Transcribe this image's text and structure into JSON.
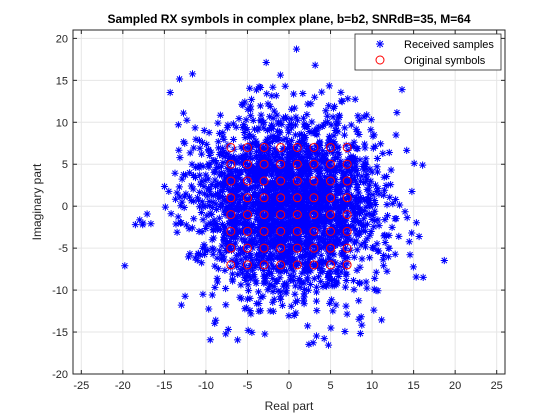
{
  "chart_data": {
    "type": "scatter",
    "title": "Sampled RX symbols in complex plane, b=b2, SNRdB=35, M=64",
    "xlabel": "Real part",
    "ylabel": "Imaginary part",
    "xlim": [
      -26,
      26
    ],
    "ylim": [
      -20,
      21
    ],
    "xticks": [
      -25,
      -20,
      -15,
      -10,
      -5,
      0,
      5,
      10,
      15,
      20,
      25
    ],
    "yticks": [
      -20,
      -15,
      -10,
      -5,
      0,
      5,
      10,
      15,
      20
    ],
    "grid": true,
    "legend_position": "top-right",
    "series": [
      {
        "name": "Received samples",
        "marker": "asterisk",
        "color": "#0000ff",
        "distribution": {
          "center": [
            0,
            0
          ],
          "spread_real": 5.5,
          "spread_imag": 5.3,
          "extent_real": [
            -21,
            21
          ],
          "extent_imag": [
            -20,
            21
          ]
        }
      },
      {
        "name": "Original symbols",
        "marker": "circle",
        "color": "#ff0000",
        "grid_levels": [
          -7,
          -5,
          -3,
          -1,
          1,
          3,
          5,
          7
        ]
      }
    ]
  }
}
